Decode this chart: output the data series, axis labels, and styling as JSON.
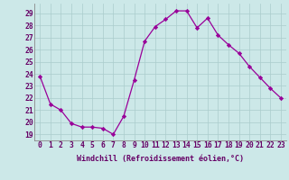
{
  "x": [
    0,
    1,
    2,
    3,
    4,
    5,
    6,
    7,
    8,
    9,
    10,
    11,
    12,
    13,
    14,
    15,
    16,
    17,
    18,
    19,
    20,
    21,
    22,
    23
  ],
  "y": [
    23.8,
    21.5,
    21.0,
    19.9,
    19.6,
    19.6,
    19.5,
    19.0,
    20.5,
    23.5,
    26.7,
    27.9,
    28.5,
    29.2,
    29.2,
    27.8,
    28.6,
    27.2,
    26.4,
    25.7,
    24.6,
    23.7,
    22.8,
    22.0
  ],
  "line_color": "#990099",
  "marker": "D",
  "marker_size": 2.2,
  "bg_color": "#cce8e8",
  "grid_color": "#aacccc",
  "xlabel": "Windchill (Refroidissement éolien,°C)",
  "xlabel_fontsize": 6.0,
  "ylabel_ticks": [
    19,
    20,
    21,
    22,
    23,
    24,
    25,
    26,
    27,
    28,
    29
  ],
  "ylim": [
    18.5,
    29.8
  ],
  "xlim": [
    -0.5,
    23.5
  ],
  "tick_fontsize": 5.8,
  "spine_color": "#888888",
  "tick_color": "#660066"
}
